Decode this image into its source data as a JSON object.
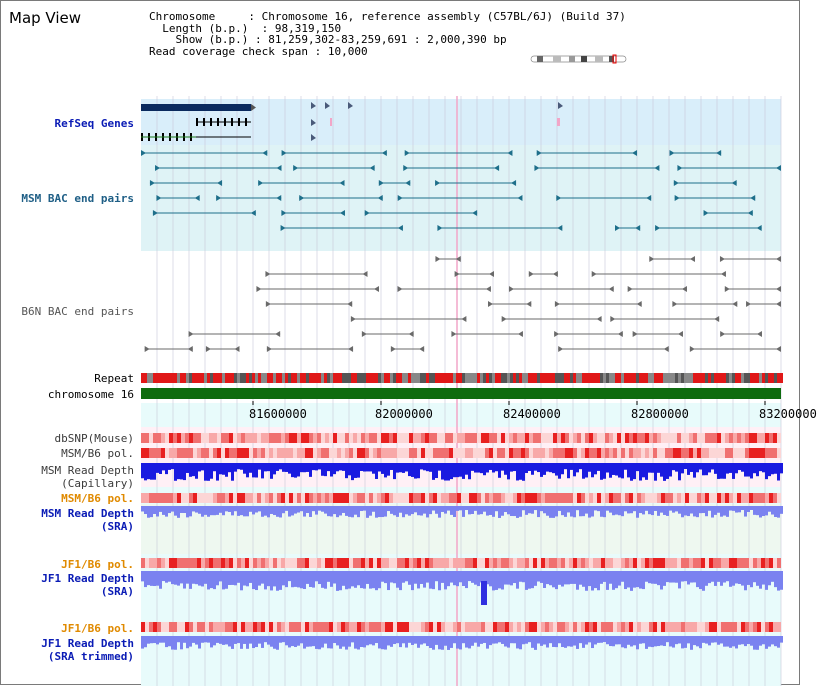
{
  "view_title": "Map View",
  "info": {
    "chromosome_key": "Chromosome",
    "chromosome_val": "Chromosome 16, reference assembly (C57BL/6J) (Build 37)",
    "length_key": "Length (b.p.)",
    "length_val": "98,319,150",
    "show_key": "Show (b.p.)",
    "show_val": "81,259,302-83,259,691 : 2,000,390 bp",
    "coverage_key": "Read coverage check span",
    "coverage_val": "10,000"
  },
  "labels": {
    "refseq": "RefSeq Genes",
    "msm_bac": "MSM BAC end pairs",
    "b6n_bac": "B6N BAC end pairs",
    "repeat": "Repeat",
    "chromosome": "chromosome 16",
    "dbsnp": "dbSNP(Mouse)",
    "msm_b6_pol_1": "MSM/B6 pol.",
    "msm_read_depth_cap_1": "MSM Read Depth",
    "msm_read_depth_cap_2": "(Capillary)",
    "msm_b6_pol_2": "MSM/B6 pol.",
    "msm_read_depth_sra_1": "MSM Read Depth",
    "msm_read_depth_sra_2": "(SRA)",
    "jf1_b6_pol_1": "JF1/B6 pol.",
    "jf1_read_depth_sra_1": "JF1 Read Depth",
    "jf1_read_depth_sra_2": "(SRA)",
    "jf1_b6_pol_2": "JF1/B6 pol.",
    "jf1_read_depth_trim_1": "JF1 Read Depth",
    "jf1_read_depth_trim_2": "(SRA trimmed)"
  },
  "ticks": [
    "81600000",
    "82000000",
    "82400000",
    "82800000",
    "83200000"
  ],
  "colors": {
    "refseq_bg": "#d9eefa",
    "msm_bg": "#dff3f6",
    "b6n_bg": "#ffffff",
    "chrom_bar": "#0e6b0e",
    "depth_blue": "#1a1ae0",
    "depth_light": "#7a82f0",
    "highlight": "#f2a6c8"
  }
}
